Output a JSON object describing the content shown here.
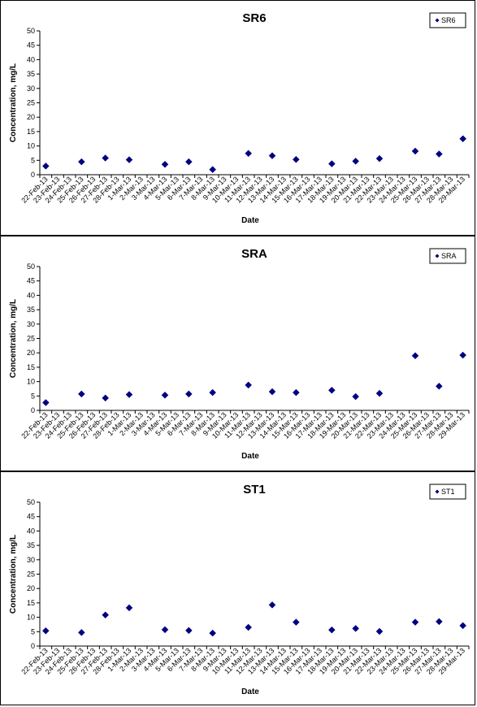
{
  "chart_data": [
    {
      "type": "scatter",
      "title": "SR6",
      "xlabel": "Date",
      "ylabel": "Concentration, mg/L",
      "ylim": [
        0,
        50
      ],
      "yticks": [
        0,
        5,
        10,
        15,
        20,
        25,
        30,
        35,
        40,
        45,
        50
      ],
      "legend_position": "top-right",
      "grid": false,
      "series": [
        {
          "name": "SR6",
          "color": "#000080",
          "points": [
            {
              "x": "22-Feb-13",
              "y": 3.0
            },
            {
              "x": "25-Feb-13",
              "y": 4.5
            },
            {
              "x": "27-Feb-13",
              "y": 5.8
            },
            {
              "x": "1-Mar-13",
              "y": 5.2
            },
            {
              "x": "4-Mar-13",
              "y": 3.6
            },
            {
              "x": "6-Mar-13",
              "y": 4.5
            },
            {
              "x": "8-Mar-13",
              "y": 1.8
            },
            {
              "x": "11-Mar-13",
              "y": 7.4
            },
            {
              "x": "13-Mar-13",
              "y": 6.6
            },
            {
              "x": "15-Mar-13",
              "y": 5.3
            },
            {
              "x": "18-Mar-13",
              "y": 3.8
            },
            {
              "x": "20-Mar-13",
              "y": 4.7
            },
            {
              "x": "22-Mar-13",
              "y": 5.6
            },
            {
              "x": "25-Mar-13",
              "y": 8.2
            },
            {
              "x": "27-Mar-13",
              "y": 7.2
            },
            {
              "x": "29-Mar-13",
              "y": 12.5
            }
          ]
        }
      ]
    },
    {
      "type": "scatter",
      "title": "SRA",
      "xlabel": "Date",
      "ylabel": "Concentration, mg/L",
      "ylim": [
        0,
        50
      ],
      "yticks": [
        0,
        5,
        10,
        15,
        20,
        25,
        30,
        35,
        40,
        45,
        50
      ],
      "legend_position": "top-right",
      "grid": false,
      "series": [
        {
          "name": "SRA",
          "color": "#000080",
          "points": [
            {
              "x": "22-Feb-13",
              "y": 2.7
            },
            {
              "x": "25-Feb-13",
              "y": 5.7
            },
            {
              "x": "27-Feb-13",
              "y": 4.3
            },
            {
              "x": "1-Mar-13",
              "y": 5.5
            },
            {
              "x": "4-Mar-13",
              "y": 5.3
            },
            {
              "x": "6-Mar-13",
              "y": 5.7
            },
            {
              "x": "8-Mar-13",
              "y": 6.2
            },
            {
              "x": "11-Mar-13",
              "y": 8.8
            },
            {
              "x": "13-Mar-13",
              "y": 6.5
            },
            {
              "x": "15-Mar-13",
              "y": 6.2
            },
            {
              "x": "18-Mar-13",
              "y": 7.0
            },
            {
              "x": "20-Mar-13",
              "y": 4.8
            },
            {
              "x": "22-Mar-13",
              "y": 5.9
            },
            {
              "x": "25-Mar-13",
              "y": 19.0
            },
            {
              "x": "27-Mar-13",
              "y": 8.4
            },
            {
              "x": "29-Mar-13",
              "y": 19.2
            }
          ]
        }
      ]
    },
    {
      "type": "scatter",
      "title": "ST1",
      "xlabel": "Date",
      "ylabel": "Concentration, mg/L",
      "ylim": [
        0,
        50
      ],
      "yticks": [
        0,
        5,
        10,
        15,
        20,
        25,
        30,
        35,
        40,
        45,
        50
      ],
      "legend_position": "top-right",
      "grid": false,
      "series": [
        {
          "name": "ST1",
          "color": "#000080",
          "points": [
            {
              "x": "22-Feb-13",
              "y": 5.3
            },
            {
              "x": "25-Feb-13",
              "y": 4.7
            },
            {
              "x": "27-Feb-13",
              "y": 10.8
            },
            {
              "x": "1-Mar-13",
              "y": 13.3
            },
            {
              "x": "4-Mar-13",
              "y": 5.7
            },
            {
              "x": "6-Mar-13",
              "y": 5.4
            },
            {
              "x": "8-Mar-13",
              "y": 4.5
            },
            {
              "x": "11-Mar-13",
              "y": 6.5
            },
            {
              "x": "13-Mar-13",
              "y": 14.3
            },
            {
              "x": "15-Mar-13",
              "y": 8.3
            },
            {
              "x": "18-Mar-13",
              "y": 5.6
            },
            {
              "x": "20-Mar-13",
              "y": 6.1
            },
            {
              "x": "22-Mar-13",
              "y": 5.1
            },
            {
              "x": "25-Mar-13",
              "y": 8.3
            },
            {
              "x": "27-Mar-13",
              "y": 8.5
            },
            {
              "x": "29-Mar-13",
              "y": 7.1
            }
          ]
        }
      ]
    }
  ],
  "x_categories": [
    "22-Feb-13",
    "23-Feb-13",
    "24-Feb-13",
    "25-Feb-13",
    "26-Feb-13",
    "27-Feb-13",
    "28-Feb-13",
    "1-Mar-13",
    "2-Mar-13",
    "3-Mar-13",
    "4-Mar-13",
    "5-Mar-13",
    "6-Mar-13",
    "7-Mar-13",
    "8-Mar-13",
    "9-Mar-13",
    "10-Mar-13",
    "11-Mar-13",
    "12-Mar-13",
    "13-Mar-13",
    "14-Mar-13",
    "15-Mar-13",
    "16-Mar-13",
    "17-Mar-13",
    "18-Mar-13",
    "19-Mar-13",
    "20-Mar-13",
    "21-Mar-13",
    "22-Mar-13",
    "23-Mar-13",
    "24-Mar-13",
    "25-Mar-13",
    "26-Mar-13",
    "27-Mar-13",
    "28-Mar-13",
    "29-Mar-13"
  ]
}
